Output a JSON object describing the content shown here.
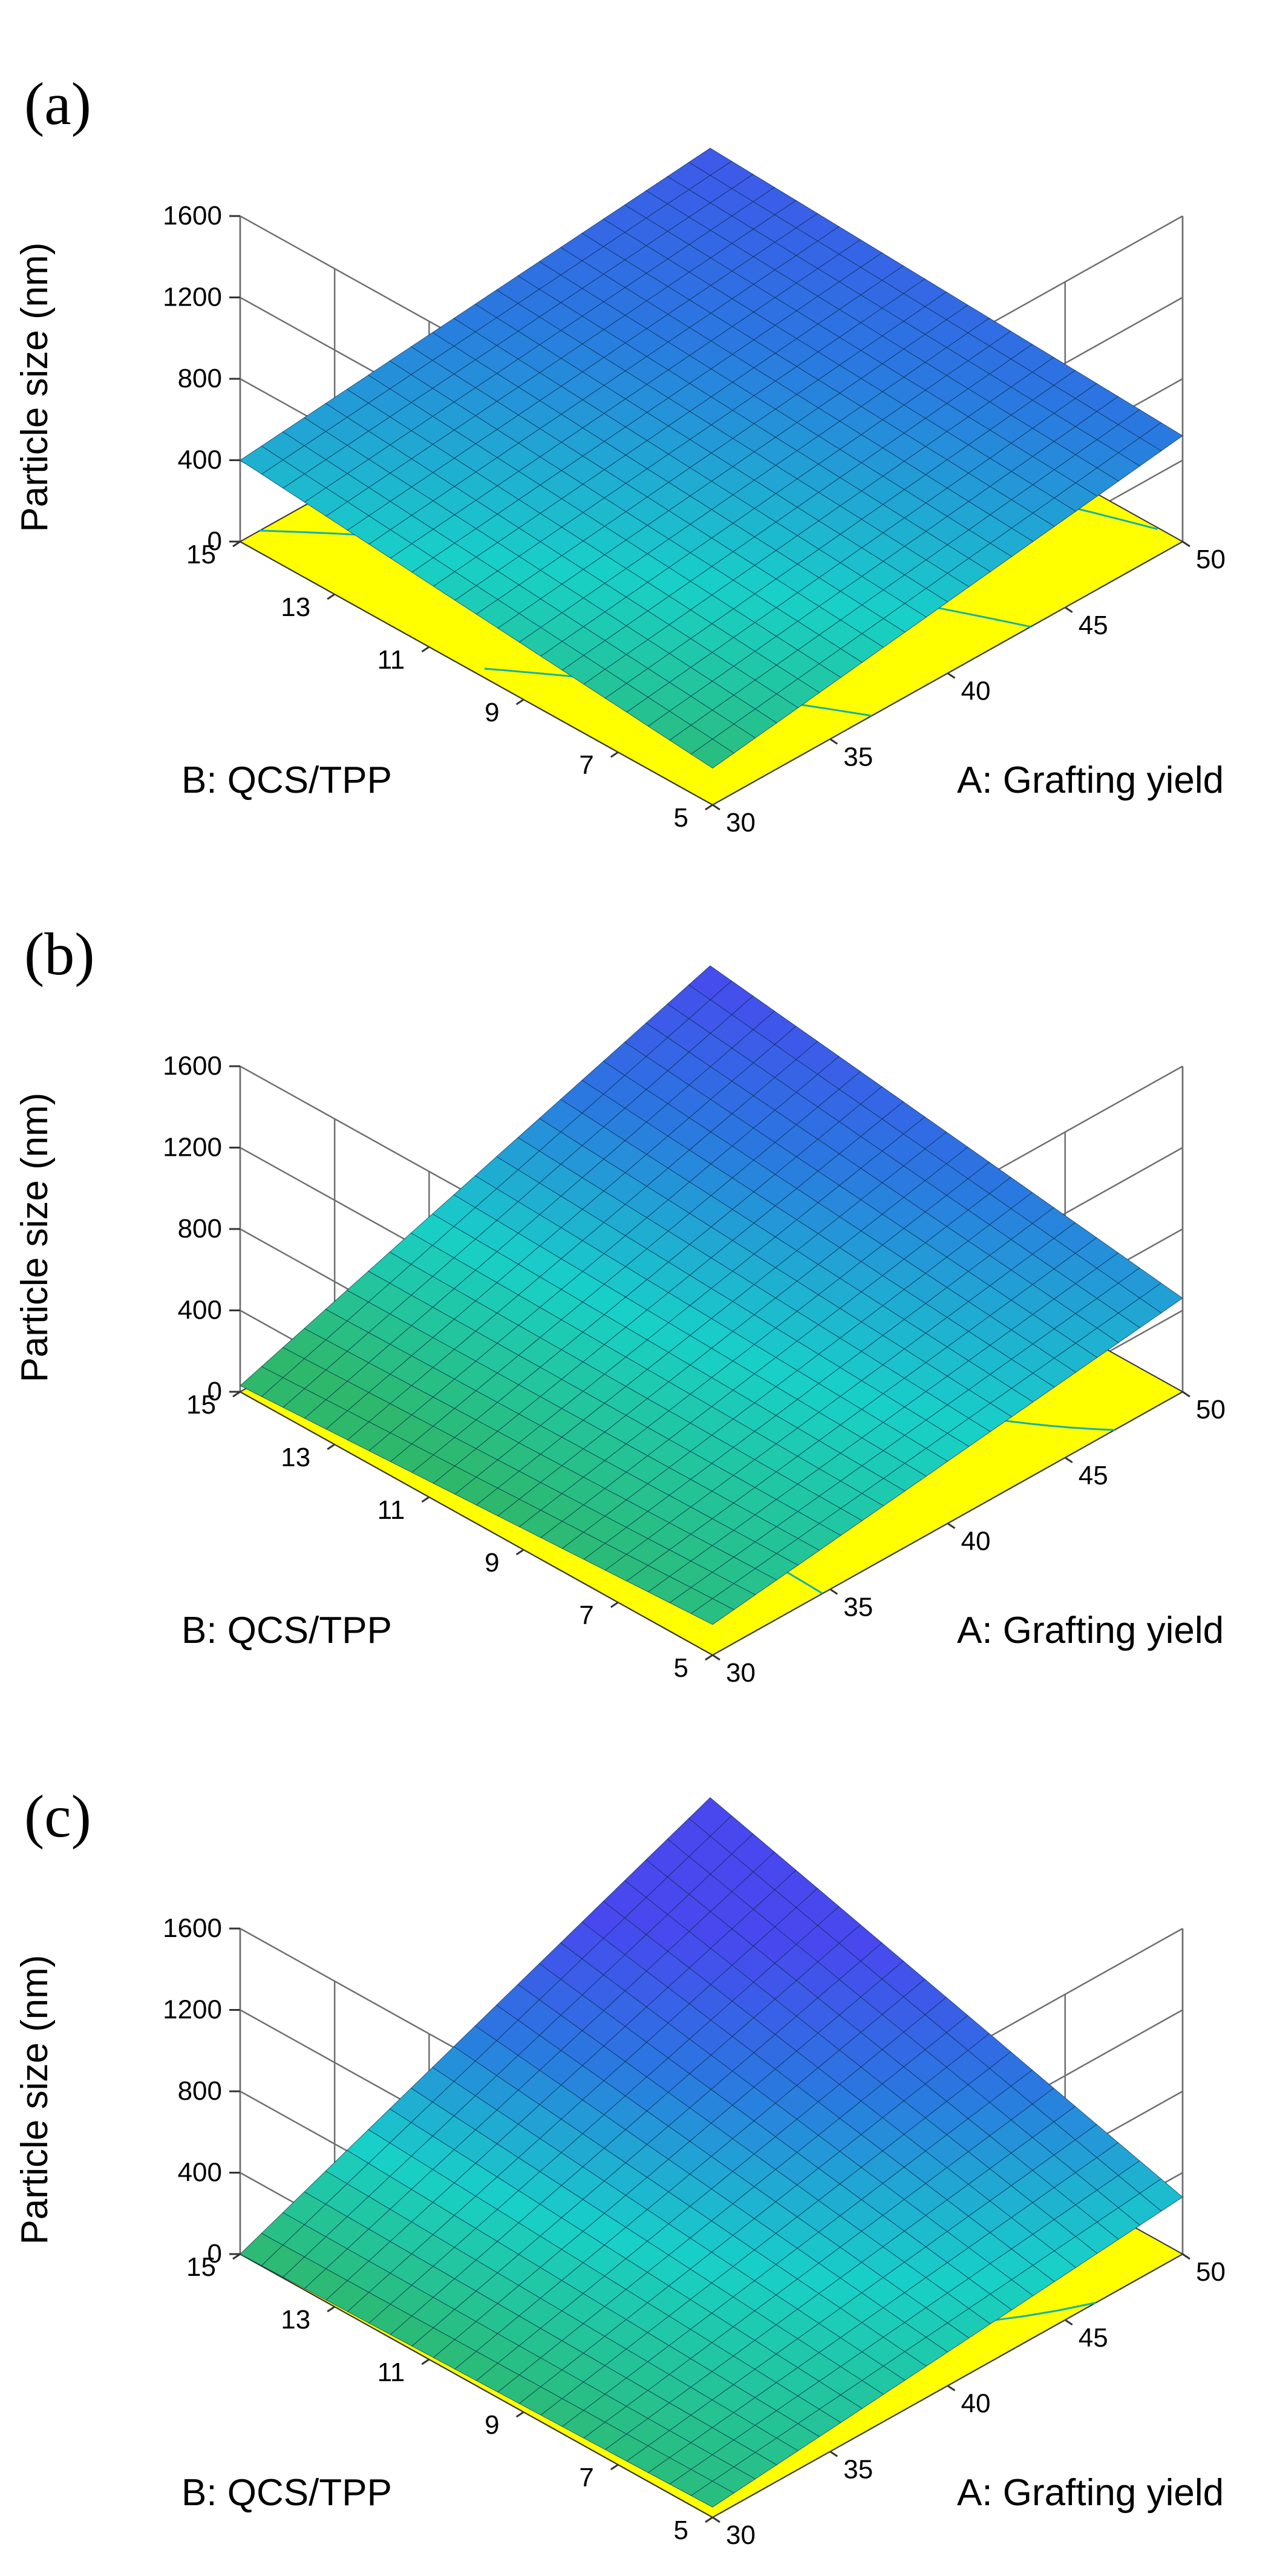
{
  "chart_data": [
    {
      "type": "surface3d",
      "panel_label": "(a)",
      "zlabel": "Particle size (nm)",
      "xlabel": "A: Grafting yield",
      "ylabel": "B: QCS/TPP",
      "xlim": [
        30,
        50
      ],
      "ylim": [
        5,
        15
      ],
      "zlim": [
        0,
        1600
      ],
      "x_ticks": [
        "30",
        "35",
        "40",
        "45",
        "50"
      ],
      "y_ticks": [
        "5",
        "7",
        "9",
        "11",
        "13",
        "15"
      ],
      "z_ticks": [
        "0",
        "400",
        "800",
        "1200",
        "1600"
      ],
      "corner_values": {
        "A30_B5": 180,
        "A50_B5": 520,
        "A30_B15": 400,
        "A50_B15": 640
      },
      "colormap": [
        "#2eb86c",
        "#18d0c8",
        "#2a78e0",
        "#4848ee"
      ],
      "color_range": [
        150,
        700
      ]
    },
    {
      "type": "surface3d",
      "panel_label": "(b)",
      "zlabel": "Particle size (nm)",
      "xlabel": "A: Grafting yield",
      "ylabel": "B: QCS/TPP",
      "xlim": [
        30,
        50
      ],
      "ylim": [
        5,
        15
      ],
      "zlim": [
        0,
        1600
      ],
      "x_ticks": [
        "30",
        "35",
        "40",
        "45",
        "50"
      ],
      "y_ticks": [
        "5",
        "7",
        "9",
        "11",
        "13",
        "15"
      ],
      "z_ticks": [
        "0",
        "400",
        "800",
        "1200",
        "1600"
      ],
      "corner_values": {
        "A30_B5": 150,
        "A50_B5": 460,
        "A30_B15": 30,
        "A50_B15": 800
      },
      "colormap": [
        "#2eb86c",
        "#18d0c8",
        "#2a78e0",
        "#4848ee"
      ],
      "color_range": [
        100,
        800
      ]
    },
    {
      "type": "surface3d",
      "panel_label": "(c)",
      "zlabel": "Particle size (nm)",
      "xlabel": "A: Grafting yield",
      "ylabel": "B: QCS/TPP",
      "xlim": [
        30,
        50
      ],
      "ylim": [
        5,
        15
      ],
      "zlim": [
        0,
        1600
      ],
      "x_ticks": [
        "30",
        "35",
        "40",
        "45",
        "50"
      ],
      "y_ticks": [
        "5",
        "7",
        "9",
        "11",
        "13",
        "15"
      ],
      "z_ticks": [
        "0",
        "400",
        "800",
        "1200",
        "1600"
      ],
      "corner_values": {
        "A30_B5": 50,
        "A50_B5": 280,
        "A30_B15": 0,
        "A50_B15": 950
      },
      "colormap": [
        "#2eb86c",
        "#18d0c8",
        "#2a78e0",
        "#4848ee"
      ],
      "color_range": [
        0,
        700
      ]
    }
  ]
}
